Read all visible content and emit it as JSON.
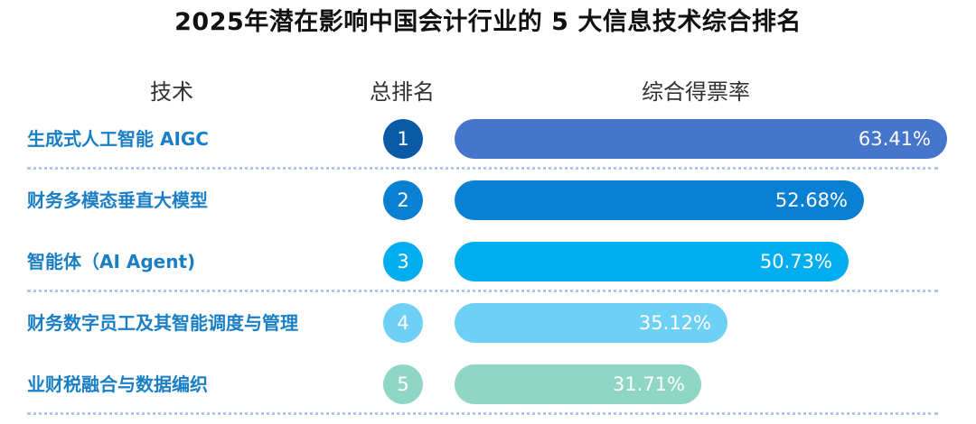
{
  "title": "2025年潜在影响中国会计行业的 5 大信息技术综合排名",
  "headers": {
    "tech": "技术",
    "rank": "总排名",
    "rate": "综合得票率"
  },
  "chart_data": {
    "type": "bar",
    "title": "2025年潜在影响中国会计行业的 5 大信息技术综合排名",
    "categories": [
      "生成式人工智能 AIGC",
      "财务多模态垂直大模型",
      "智能体（AI Agent)",
      "财务数字员工及其智能调度与管理",
      "业财税融合与数据编织"
    ],
    "ranks": [
      "1",
      "2",
      "3",
      "4",
      "5"
    ],
    "values": [
      63.41,
      52.68,
      50.73,
      35.12,
      31.71
    ],
    "value_labels": [
      "63.41%",
      "52.68%",
      "50.73%",
      "35.12%",
      "31.71%"
    ],
    "colors": [
      "#4675cc",
      "#0a80d2",
      "#00aeef",
      "#6fd0f6",
      "#8fd6c4"
    ],
    "circle_colors": [
      "#0b5aa6",
      "#0a80d2",
      "#00aeef",
      "#6fd0f6",
      "#8fd6c4"
    ],
    "label_color": "#1a7fc4",
    "orientation": "horizontal",
    "xlim": [
      0,
      64
    ]
  }
}
